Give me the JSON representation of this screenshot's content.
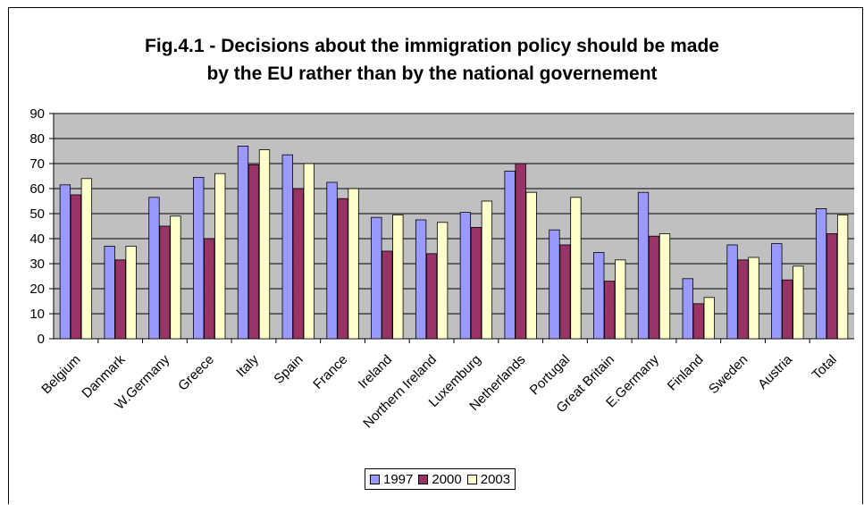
{
  "chart_data": {
    "type": "bar",
    "title": "Fig.4.1 - Decisions about the immigration policy should be made by the EU rather than by the national governement",
    "title_lines": [
      "Fig.4.1 - Decisions about the immigration policy should be made",
      "by the EU rather than by the national governement"
    ],
    "categories": [
      "Belgium",
      "Danmark",
      "W.Germany",
      "Greece",
      "Italy",
      "Spain",
      "France",
      "Ireland",
      "Northern Ireland",
      "Luxemburg",
      "Netherlands",
      "Portugal",
      "Great Britain",
      "E.Germany",
      "Finland",
      "Sweden",
      "Austria",
      "Total"
    ],
    "series": [
      {
        "name": "1997",
        "color": "#9999ff",
        "values": [
          61.5,
          37,
          56.5,
          64.5,
          77,
          73.5,
          62.5,
          48.5,
          47.5,
          50.5,
          67,
          43.5,
          34.5,
          58.5,
          24,
          37.5,
          38,
          52
        ]
      },
      {
        "name": "2000",
        "color": "#993366",
        "values": [
          57.5,
          31.5,
          45,
          40,
          69.5,
          60,
          56,
          35,
          34,
          44.5,
          70,
          37.5,
          23,
          41,
          14,
          31.5,
          23.5,
          42
        ]
      },
      {
        "name": "2003",
        "color": "#ffffcc",
        "values": [
          64,
          37,
          49,
          66,
          75.5,
          70,
          60,
          49.5,
          46.5,
          55,
          58.5,
          56.5,
          31.5,
          42,
          16.5,
          32.5,
          29,
          49.5
        ]
      }
    ],
    "ylim": [
      0,
      90
    ],
    "yticks": [
      "0",
      "10",
      "20",
      "30",
      "40",
      "50",
      "60",
      "70",
      "80",
      "90"
    ],
    "xlabel": "",
    "ylabel": "",
    "grid": true,
    "plot_background": "#c0c0c0",
    "legend_position": "bottom"
  }
}
